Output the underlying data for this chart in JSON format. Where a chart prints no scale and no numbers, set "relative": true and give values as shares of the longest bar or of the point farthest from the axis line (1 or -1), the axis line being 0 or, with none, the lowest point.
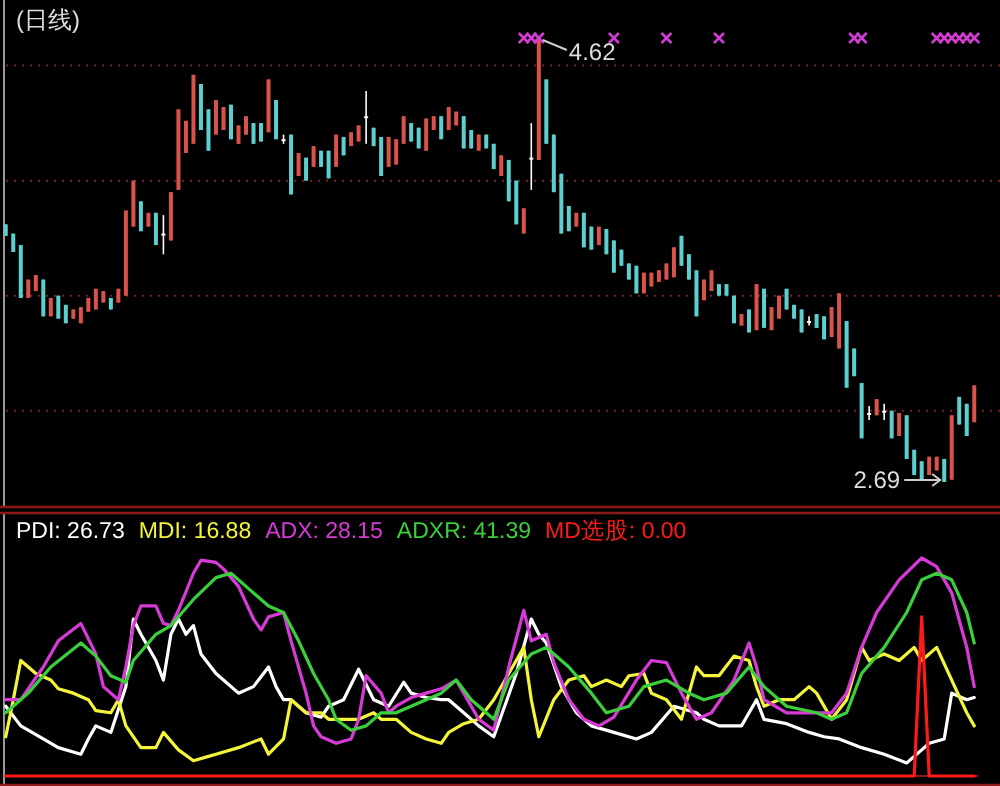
{
  "chart_data": [
    {
      "type": "candlestick",
      "title": "(日线)",
      "grid": "y",
      "categories": [
        null,
        null,
        null,
        null,
        null,
        null,
        null,
        null,
        null,
        null,
        null,
        null,
        null,
        null,
        null,
        null,
        null,
        null,
        null,
        null,
        null,
        null,
        null,
        null,
        null,
        null,
        null,
        null,
        null,
        null,
        null,
        null,
        null,
        null,
        null,
        null,
        null,
        null,
        null,
        null,
        null,
        null,
        null,
        null,
        null,
        null,
        null,
        null,
        null,
        null,
        null,
        null,
        null,
        null,
        null,
        null,
        null,
        null,
        null,
        null,
        null,
        null,
        null,
        null,
        null,
        null,
        null,
        null,
        null,
        null,
        null,
        null,
        null,
        null,
        null,
        null,
        null,
        null,
        null,
        null,
        null,
        null,
        null,
        null,
        null,
        null,
        null,
        null,
        null,
        null,
        null,
        null,
        null,
        null,
        null,
        null,
        null,
        null,
        null,
        null,
        null,
        null,
        null,
        null,
        null,
        null,
        null,
        null,
        null,
        null,
        null,
        null,
        null,
        null,
        null,
        null,
        null,
        null,
        null,
        null,
        null,
        null,
        null,
        null,
        null,
        null,
        null,
        null,
        null,
        null
      ],
      "yticks": [
        {
          "value": 4.5,
          "label": null
        },
        {
          "value": 4.0,
          "label": null
        },
        {
          "value": 3.5,
          "label": null
        },
        {
          "value": 3.0,
          "label": null
        }
      ],
      "ohlc": [
        [
          3.81,
          3.81,
          3.76,
          3.76
        ],
        [
          3.77,
          3.77,
          3.69,
          3.69
        ],
        [
          3.72,
          3.72,
          3.49,
          3.49
        ],
        [
          3.49,
          3.57,
          3.49,
          3.57
        ],
        [
          3.52,
          3.59,
          3.52,
          3.59
        ],
        [
          3.57,
          3.57,
          3.41,
          3.41
        ],
        [
          3.41,
          3.49,
          3.41,
          3.49
        ],
        [
          3.5,
          3.5,
          3.4,
          3.4
        ],
        [
          3.46,
          3.46,
          3.38,
          3.38
        ],
        [
          3.4,
          3.44,
          3.4,
          3.44
        ],
        [
          3.38,
          3.45,
          3.38,
          3.45
        ],
        [
          3.43,
          3.49,
          3.43,
          3.49
        ],
        [
          3.44,
          3.53,
          3.44,
          3.53
        ],
        [
          3.47,
          3.52,
          3.47,
          3.52
        ],
        [
          3.49,
          3.49,
          3.44,
          3.44
        ],
        [
          3.47,
          3.53,
          3.47,
          3.53
        ],
        [
          3.5,
          3.87,
          3.5,
          3.87
        ],
        [
          3.8,
          4.0,
          3.8,
          4.0
        ],
        [
          3.91,
          3.91,
          3.78,
          3.78
        ],
        [
          3.8,
          3.86,
          3.8,
          3.86
        ],
        [
          3.86,
          3.86,
          3.72,
          3.72
        ],
        [
          3.77,
          3.85,
          3.68,
          3.77
        ],
        [
          3.74,
          3.95,
          3.74,
          3.95
        ],
        [
          3.96,
          4.31,
          3.96,
          4.31
        ],
        [
          4.12,
          4.26,
          4.12,
          4.26
        ],
        [
          4.16,
          4.46,
          4.16,
          4.46
        ],
        [
          4.42,
          4.42,
          4.22,
          4.22
        ],
        [
          4.31,
          4.31,
          4.13,
          4.13
        ],
        [
          4.2,
          4.35,
          4.2,
          4.35
        ],
        [
          4.22,
          4.32,
          4.22,
          4.32
        ],
        [
          4.33,
          4.33,
          4.18,
          4.18
        ],
        [
          4.16,
          4.24,
          4.16,
          4.24
        ],
        [
          4.2,
          4.28,
          4.2,
          4.28
        ],
        [
          4.25,
          4.25,
          4.16,
          4.16
        ],
        [
          4.25,
          4.25,
          4.17,
          4.17
        ],
        [
          4.21,
          4.44,
          4.21,
          4.44
        ],
        [
          4.35,
          4.35,
          4.18,
          4.18
        ],
        [
          4.18,
          4.2,
          4.16,
          4.18
        ],
        [
          4.2,
          4.2,
          3.94,
          3.94
        ],
        [
          4.02,
          4.12,
          4.02,
          4.12
        ],
        [
          4.1,
          4.1,
          4.0,
          4.0
        ],
        [
          4.06,
          4.15,
          4.06,
          4.15
        ],
        [
          4.13,
          4.13,
          4.06,
          4.06
        ],
        [
          4.13,
          4.13,
          4.01,
          4.01
        ],
        [
          4.06,
          4.2,
          4.06,
          4.2
        ],
        [
          4.19,
          4.19,
          4.11,
          4.11
        ],
        [
          4.15,
          4.21,
          4.15,
          4.21
        ],
        [
          4.17,
          4.24,
          4.17,
          4.24
        ],
        [
          4.28,
          4.39,
          4.16,
          4.28
        ],
        [
          4.23,
          4.23,
          4.15,
          4.15
        ],
        [
          4.19,
          4.19,
          4.02,
          4.02
        ],
        [
          4.06,
          4.19,
          4.06,
          4.19
        ],
        [
          4.07,
          4.18,
          4.07,
          4.18
        ],
        [
          4.16,
          4.28,
          4.16,
          4.28
        ],
        [
          4.25,
          4.25,
          4.17,
          4.17
        ],
        [
          4.23,
          4.23,
          4.14,
          4.14
        ],
        [
          4.13,
          4.27,
          4.13,
          4.27
        ],
        [
          4.22,
          4.28,
          4.22,
          4.28
        ],
        [
          4.28,
          4.28,
          4.18,
          4.18
        ],
        [
          4.22,
          4.32,
          4.22,
          4.32
        ],
        [
          4.24,
          4.3,
          4.24,
          4.3
        ],
        [
          4.28,
          4.28,
          4.14,
          4.14
        ],
        [
          4.22,
          4.22,
          4.14,
          4.14
        ],
        [
          4.13,
          4.2,
          4.13,
          4.2
        ],
        [
          4.2,
          4.2,
          4.14,
          4.14
        ],
        [
          4.16,
          4.16,
          4.05,
          4.05
        ],
        [
          4.02,
          4.11,
          4.02,
          4.11
        ],
        [
          4.09,
          4.09,
          3.91,
          3.91
        ],
        [
          4.0,
          4.0,
          3.81,
          3.81
        ],
        [
          3.77,
          3.88,
          3.77,
          3.88
        ],
        [
          4.1,
          4.25,
          3.96,
          4.1
        ],
        [
          4.09,
          4.62,
          4.09,
          4.62
        ],
        [
          4.44,
          4.44,
          4.16,
          4.16
        ],
        [
          4.2,
          4.2,
          3.95,
          3.95
        ],
        [
          4.03,
          4.03,
          3.77,
          3.77
        ],
        [
          3.89,
          3.89,
          3.78,
          3.78
        ],
        [
          3.8,
          3.86,
          3.8,
          3.86
        ],
        [
          3.86,
          3.86,
          3.71,
          3.71
        ],
        [
          3.8,
          3.8,
          3.7,
          3.7
        ],
        [
          3.72,
          3.8,
          3.72,
          3.8
        ],
        [
          3.79,
          3.79,
          3.68,
          3.68
        ],
        [
          3.74,
          3.74,
          3.6,
          3.6
        ],
        [
          3.7,
          3.7,
          3.63,
          3.63
        ],
        [
          3.64,
          3.64,
          3.57,
          3.57
        ],
        [
          3.63,
          3.63,
          3.51,
          3.51
        ],
        [
          3.51,
          3.6,
          3.51,
          3.6
        ],
        [
          3.54,
          3.6,
          3.54,
          3.6
        ],
        [
          3.56,
          3.61,
          3.56,
          3.61
        ],
        [
          3.57,
          3.64,
          3.57,
          3.64
        ],
        [
          3.58,
          3.71,
          3.58,
          3.71
        ],
        [
          3.76,
          3.76,
          3.63,
          3.63
        ],
        [
          3.68,
          3.68,
          3.57,
          3.57
        ],
        [
          3.61,
          3.61,
          3.41,
          3.41
        ],
        [
          3.48,
          3.57,
          3.48,
          3.57
        ],
        [
          3.52,
          3.61,
          3.52,
          3.61
        ],
        [
          3.55,
          3.55,
          3.5,
          3.5
        ],
        [
          3.55,
          3.55,
          3.5,
          3.5
        ],
        [
          3.5,
          3.5,
          3.38,
          3.38
        ],
        [
          3.37,
          3.42,
          3.37,
          3.42
        ],
        [
          3.44,
          3.44,
          3.34,
          3.34
        ],
        [
          3.35,
          3.55,
          3.35,
          3.55
        ],
        [
          3.53,
          3.53,
          3.36,
          3.36
        ],
        [
          3.35,
          3.45,
          3.35,
          3.45
        ],
        [
          3.4,
          3.5,
          3.4,
          3.5
        ],
        [
          3.53,
          3.53,
          3.44,
          3.44
        ],
        [
          3.46,
          3.46,
          3.4,
          3.4
        ],
        [
          3.44,
          3.44,
          3.34,
          3.34
        ],
        [
          3.39,
          3.41,
          3.37,
          3.39
        ],
        [
          3.42,
          3.42,
          3.36,
          3.36
        ],
        [
          3.41,
          3.41,
          3.31,
          3.31
        ],
        [
          3.32,
          3.45,
          3.32,
          3.45
        ],
        [
          3.27,
          3.51,
          3.27,
          3.51
        ],
        [
          3.39,
          3.39,
          3.1,
          3.1
        ],
        [
          3.27,
          3.27,
          3.15,
          3.15
        ],
        [
          3.12,
          3.12,
          2.88,
          2.88
        ],
        [
          2.99,
          3.02,
          2.96,
          2.99
        ],
        [
          2.98,
          3.05,
          2.98,
          3.05
        ],
        [
          3.0,
          3.03,
          2.96,
          3.0
        ],
        [
          3.0,
          3.0,
          2.88,
          2.88
        ],
        [
          2.89,
          2.99,
          2.89,
          2.99
        ],
        [
          2.98,
          2.98,
          2.79,
          2.79
        ],
        [
          2.83,
          2.83,
          2.72,
          2.72
        ],
        [
          2.78,
          2.78,
          2.7,
          2.7
        ],
        [
          2.72,
          2.8,
          2.72,
          2.8
        ],
        [
          2.74,
          2.8,
          2.74,
          2.8
        ],
        [
          2.79,
          2.79,
          2.69,
          2.69
        ],
        [
          2.7,
          2.98,
          2.7,
          2.98
        ],
        [
          3.06,
          3.06,
          2.94,
          2.94
        ],
        [
          3.03,
          3.03,
          2.89,
          2.89
        ],
        [
          2.95,
          3.11,
          2.95,
          3.11
        ]
      ],
      "colors": [
        "#5ccfcf",
        "#5ccfcf",
        "#5ccfcf",
        "#d9534a",
        "#d9534a",
        "#5ccfcf",
        "#d9534a",
        "#5ccfcf",
        "#5ccfcf",
        "#d9534a",
        "#d9534a",
        "#d9534a",
        "#d9534a",
        "#d9534a",
        "#5ccfcf",
        "#d9534a",
        "#d9534a",
        "#d9534a",
        "#5ccfcf",
        "#d9534a",
        "#5ccfcf",
        "#ffffff",
        "#d9534a",
        "#d9534a",
        "#d9534a",
        "#d9534a",
        "#5ccfcf",
        "#5ccfcf",
        "#d9534a",
        "#d9534a",
        "#5ccfcf",
        "#d9534a",
        "#d9534a",
        "#5ccfcf",
        "#5ccfcf",
        "#d9534a",
        "#5ccfcf",
        "#ffffff",
        "#5ccfcf",
        "#d9534a",
        "#5ccfcf",
        "#d9534a",
        "#5ccfcf",
        "#5ccfcf",
        "#d9534a",
        "#5ccfcf",
        "#d9534a",
        "#d9534a",
        "#ffffff",
        "#5ccfcf",
        "#5ccfcf",
        "#d9534a",
        "#d9534a",
        "#d9534a",
        "#5ccfcf",
        "#5ccfcf",
        "#d9534a",
        "#d9534a",
        "#5ccfcf",
        "#d9534a",
        "#d9534a",
        "#5ccfcf",
        "#5ccfcf",
        "#d9534a",
        "#5ccfcf",
        "#5ccfcf",
        "#d9534a",
        "#5ccfcf",
        "#5ccfcf",
        "#d9534a",
        "#ffffff",
        "#d9534a",
        "#5ccfcf",
        "#5ccfcf",
        "#5ccfcf",
        "#5ccfcf",
        "#d9534a",
        "#5ccfcf",
        "#5ccfcf",
        "#d9534a",
        "#5ccfcf",
        "#5ccfcf",
        "#5ccfcf",
        "#5ccfcf",
        "#5ccfcf",
        "#d9534a",
        "#d9534a",
        "#d9534a",
        "#d9534a",
        "#d9534a",
        "#5ccfcf",
        "#5ccfcf",
        "#5ccfcf",
        "#d9534a",
        "#d9534a",
        "#5ccfcf",
        "#5ccfcf",
        "#5ccfcf",
        "#d9534a",
        "#5ccfcf",
        "#d9534a",
        "#5ccfcf",
        "#d9534a",
        "#d9534a",
        "#5ccfcf",
        "#5ccfcf",
        "#5ccfcf",
        "#ffffff",
        "#5ccfcf",
        "#5ccfcf",
        "#d9534a",
        "#d9534a",
        "#5ccfcf",
        "#5ccfcf",
        "#5ccfcf",
        "#ffffff",
        "#d9534a",
        "#ffffff",
        "#5ccfcf",
        "#d9534a",
        "#5ccfcf",
        "#5ccfcf",
        "#5ccfcf",
        "#d9534a",
        "#d9534a",
        "#5ccfcf",
        "#d9534a",
        "#5ccfcf",
        "#5ccfcf",
        "#d9534a"
      ],
      "annotations": [
        "4.62",
        "2.69"
      ],
      "series": [
        {
          "type": "scatter",
          "color": "#d23cd2",
          "marker": "cross",
          "values": [
            null,
            null,
            null,
            null,
            null,
            null,
            null,
            null,
            null,
            null,
            null,
            null,
            null,
            null,
            null,
            null,
            null,
            null,
            null,
            null,
            null,
            null,
            null,
            null,
            null,
            null,
            null,
            null,
            null,
            null,
            null,
            null,
            null,
            null,
            null,
            null,
            null,
            null,
            null,
            null,
            null,
            null,
            null,
            null,
            null,
            null,
            null,
            null,
            null,
            null,
            null,
            null,
            null,
            null,
            null,
            null,
            null,
            null,
            null,
            null,
            null,
            null,
            null,
            null,
            null,
            null,
            null,
            null,
            null,
            4.62,
            4.62,
            4.62,
            null,
            null,
            null,
            null,
            null,
            null,
            null,
            null,
            null,
            4.62,
            null,
            null,
            null,
            null,
            null,
            null,
            4.62,
            null,
            null,
            null,
            null,
            null,
            null,
            4.62,
            null,
            null,
            null,
            null,
            null,
            null,
            null,
            null,
            null,
            null,
            null,
            null,
            null,
            null,
            null,
            null,
            null,
            4.62,
            4.62,
            null,
            null,
            null,
            null,
            null,
            null,
            null,
            null,
            null,
            4.62,
            4.62,
            4.62,
            4.62,
            4.62,
            4.62
          ]
        }
      ]
    },
    {
      "type": "line",
      "relative": true,
      "legend": "top left",
      "marker": "none",
      "line_style": "solid",
      "categories": [
        null,
        null,
        null,
        null,
        null,
        null,
        null,
        null,
        null,
        null,
        null,
        null,
        null,
        null,
        null,
        null,
        null,
        null,
        null,
        null,
        null,
        null,
        null,
        null,
        null,
        null,
        null,
        null,
        null,
        null,
        null,
        null,
        null,
        null,
        null,
        null,
        null,
        null,
        null,
        null,
        null,
        null,
        null,
        null,
        null,
        null,
        null,
        null,
        null,
        null,
        null,
        null,
        null,
        null,
        null,
        null,
        null,
        null,
        null,
        null,
        null,
        null,
        null,
        null,
        null,
        null,
        null,
        null,
        null,
        null,
        null,
        null,
        null,
        null,
        null,
        null,
        null,
        null,
        null,
        null,
        null,
        null,
        null,
        null,
        null,
        null,
        null,
        null,
        null,
        null,
        null,
        null,
        null,
        null,
        null,
        null,
        null,
        null,
        null,
        null,
        null,
        null,
        null,
        null,
        null,
        null,
        null,
        null,
        null,
        null,
        null,
        null,
        null,
        null,
        null,
        null,
        null,
        null,
        null,
        null,
        null,
        null,
        null,
        null,
        null,
        null,
        null,
        null,
        null,
        null
      ],
      "series": [
        {
          "name": "PDI: 26.73",
          "color": "#ffffff",
          "values": [
            0.32,
            null,
            0.23,
            null,
            null,
            0.17,
            null,
            0.13,
            null,
            null,
            0.1,
            0.17,
            0.23,
            null,
            0.2,
            null,
            0.41,
            0.72,
            0.65,
            null,
            0.53,
            0.44,
            0.65,
            0.72,
            0.65,
            0.69,
            0.56,
            null,
            0.47,
            0.44,
            null,
            0.38,
            null,
            0.41,
            null,
            0.5,
            0.41,
            0.35,
            0.35,
            null,
            0.29,
            null,
            0.27,
            0.32,
            null,
            0.35,
            null,
            0.49,
            null,
            0.35,
            null,
            0.32,
            null,
            0.43,
            0.38,
            null,
            0.36,
            null,
            0.35,
            0.35,
            null,
            0.29,
            null,
            0.23,
            null,
            0.18,
            null,
            null,
            0.47,
            null,
            0.72,
            0.65,
            0.61,
            null,
            0.41,
            null,
            0.29,
            null,
            0.23,
            null,
            null,
            0.2,
            null,
            null,
            0.17,
            null,
            0.2,
            null,
            null,
            0.32,
            null,
            null,
            0.29,
            0.26,
            null,
            0.23,
            null,
            null,
            0.23,
            null,
            0.35,
            0.26,
            null,
            null,
            0.24,
            null,
            null,
            0.2,
            null,
            0.18,
            null,
            0.17,
            null,
            null,
            0.13,
            null,
            null,
            0.1,
            null,
            null,
            0.06,
            null,
            0.12,
            0.15,
            null,
            0.17,
            0.38,
            null,
            0.35,
            0.36
          ]
        },
        {
          "name": "MDI: 16.88",
          "color": "#f4f43a",
          "values": [
            0.18,
            0.35,
            0.53,
            null,
            0.47,
            null,
            0.44,
            0.4,
            null,
            0.38,
            null,
            0.35,
            0.3,
            null,
            0.29,
            0.35,
            0.23,
            null,
            0.13,
            null,
            0.13,
            0.2,
            null,
            0.12,
            null,
            0.07,
            null,
            0.09,
            0.1,
            null,
            null,
            0.13,
            null,
            null,
            0.17,
            0.1,
            null,
            0.17,
            0.35,
            null,
            0.29,
            null,
            0.29,
            0.26,
            null,
            0.26,
            null,
            0.26,
            null,
            0.29,
            0.26,
            null,
            0.26,
            null,
            0.2,
            null,
            0.17,
            null,
            0.15,
            0.2,
            null,
            0.24,
            null,
            0.26,
            null,
            0.35,
            null,
            0.47,
            null,
            0.59,
            0.35,
            0.18,
            null,
            0.35,
            null,
            0.44,
            null,
            0.46,
            0.41,
            null,
            0.44,
            null,
            0.41,
            0.46,
            null,
            0.47,
            0.38,
            null,
            0.35,
            null,
            0.26,
            null,
            0.5,
            0.46,
            null,
            0.46,
            null,
            0.55,
            null,
            0.53,
            0.41,
            0.32,
            null,
            0.35,
            null,
            0.35,
            null,
            0.41,
            0.38,
            null,
            0.26,
            null,
            0.35,
            null,
            0.59,
            0.53,
            null,
            0.56,
            null,
            0.53,
            null,
            0.59,
            0.53,
            null,
            0.59,
            null,
            0.44,
            null,
            0.29,
            0.23
          ]
        },
        {
          "name": "ADX: 28.15",
          "color": "#d83ad8",
          "values": [
            0.35,
            null,
            0.35,
            null,
            null,
            0.5,
            null,
            0.62,
            null,
            null,
            0.7,
            null,
            0.56,
            0.41,
            null,
            0.35,
            0.5,
            0.69,
            0.78,
            null,
            0.78,
            0.7,
            0.69,
            0.76,
            null,
            0.93,
            0.99,
            null,
            0.98,
            0.95,
            null,
            0.87,
            null,
            0.72,
            0.67,
            0.73,
            null,
            0.75,
            0.62,
            null,
            0.38,
            0.23,
            0.18,
            null,
            0.15,
            null,
            0.17,
            0.26,
            0.46,
            null,
            0.38,
            0.29,
            0.32,
            null,
            0.36,
            null,
            0.38,
            null,
            0.4,
            null,
            0.44,
            0.38,
            null,
            0.26,
            null,
            0.21,
            null,
            0.5,
            null,
            0.76,
            0.62,
            null,
            0.65,
            0.52,
            null,
            0.35,
            null,
            0.26,
            null,
            0.23,
            null,
            0.27,
            null,
            null,
            0.44,
            null,
            0.53,
            null,
            0.52,
            null,
            0.38,
            null,
            0.26,
            null,
            0.29,
            null,
            null,
            0.44,
            null,
            0.61,
            0.5,
            0.35,
            null,
            null,
            0.29,
            null,
            null,
            null,
            0.29,
            null,
            0.29,
            null,
            0.38,
            null,
            0.59,
            null,
            0.75,
            null,
            null,
            0.9,
            null,
            null,
            1.0,
            null,
            0.96,
            null,
            0.84,
            null,
            0.59,
            0.41
          ]
        },
        {
          "name": "ADXR: 41.39",
          "color": "#3ccf3c",
          "values": [
            0.29,
            null,
            null,
            0.38,
            null,
            null,
            0.5,
            null,
            null,
            null,
            0.61,
            null,
            0.55,
            null,
            0.46,
            null,
            0.43,
            0.53,
            null,
            null,
            0.65,
            null,
            0.69,
            null,
            null,
            0.81,
            null,
            null,
            0.91,
            null,
            0.93,
            null,
            0.87,
            null,
            null,
            0.78,
            null,
            0.75,
            null,
            0.62,
            null,
            0.47,
            null,
            0.35,
            0.26,
            null,
            0.21,
            null,
            0.23,
            null,
            0.29,
            null,
            0.29,
            null,
            null,
            null,
            0.35,
            null,
            0.38,
            null,
            0.44,
            null,
            0.35,
            null,
            null,
            0.26,
            null,
            0.44,
            null,
            null,
            0.56,
            null,
            0.59,
            null,
            null,
            0.5,
            null,
            null,
            0.38,
            null,
            0.29,
            null,
            null,
            0.32,
            null,
            0.41,
            null,
            null,
            0.44,
            null,
            null,
            0.38,
            null,
            0.35,
            null,
            null,
            0.38,
            null,
            null,
            0.5,
            null,
            0.41,
            null,
            null,
            0.32,
            null,
            null,
            null,
            0.29,
            null,
            0.26,
            null,
            0.29,
            null,
            0.47,
            null,
            null,
            0.59,
            null,
            null,
            0.75,
            null,
            0.9,
            null,
            0.93,
            null,
            0.9,
            null,
            0.75,
            0.61
          ]
        },
        {
          "name": "MD选股: 0.00",
          "color": "#ff1a1a",
          "values": [
            0,
            0,
            0,
            0,
            0,
            0,
            0,
            0,
            0,
            0,
            0,
            0,
            0,
            0,
            0,
            0,
            0,
            0,
            0,
            0,
            0,
            0,
            0,
            0,
            0,
            0,
            0,
            0,
            0,
            0,
            0,
            0,
            0,
            0,
            0,
            0,
            0,
            0,
            0,
            0,
            0,
            0,
            0,
            0,
            0,
            0,
            0,
            0,
            0,
            0,
            0,
            0,
            0,
            0,
            0,
            0,
            0,
            0,
            0,
            0,
            0,
            0,
            0,
            0,
            0,
            0,
            0,
            0,
            0,
            0,
            0,
            0,
            0,
            0,
            0,
            0,
            0,
            0,
            0,
            0,
            0,
            0,
            0,
            0,
            0,
            0,
            0,
            0,
            0,
            0,
            0,
            0,
            0,
            0,
            0,
            0,
            0,
            0,
            0,
            0,
            0,
            0,
            0,
            0,
            0,
            0,
            0,
            0,
            0,
            0,
            0,
            0,
            0,
            0,
            0,
            0,
            0,
            0,
            0,
            0,
            0,
            0,
            0.73,
            0,
            0,
            0,
            0,
            0,
            0,
            0
          ]
        }
      ]
    }
  ]
}
